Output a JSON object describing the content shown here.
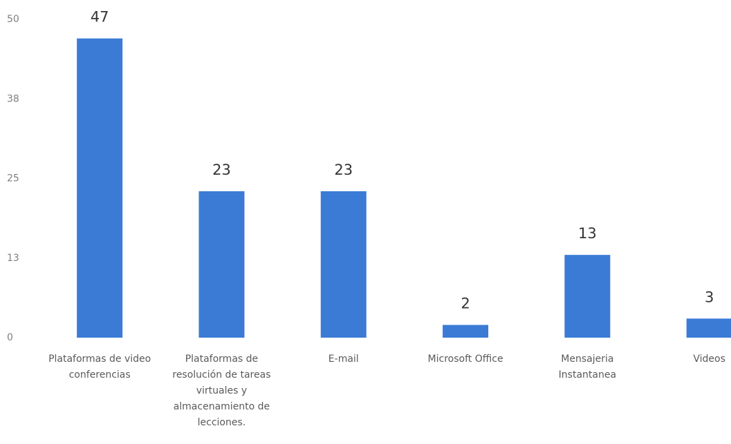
{
  "chart_data": {
    "type": "bar",
    "categories": [
      "Plataformas de video conferencias",
      "Plataformas de resolución de tareas virtuales y almacenamiento de lecciones.",
      "E-mail",
      "Microsoft Office",
      "Mensajeria Instantanea",
      "Videos"
    ],
    "values": [
      47,
      23,
      23,
      2,
      13,
      3
    ],
    "color": "#3b7bd6",
    "ylim": [
      0,
      50
    ],
    "yticks": [
      0,
      {
        "value": 12.5,
        "label": "13"
      },
      25,
      {
        "value": 37.5,
        "label": "38"
      },
      50
    ],
    "grid": false
  }
}
